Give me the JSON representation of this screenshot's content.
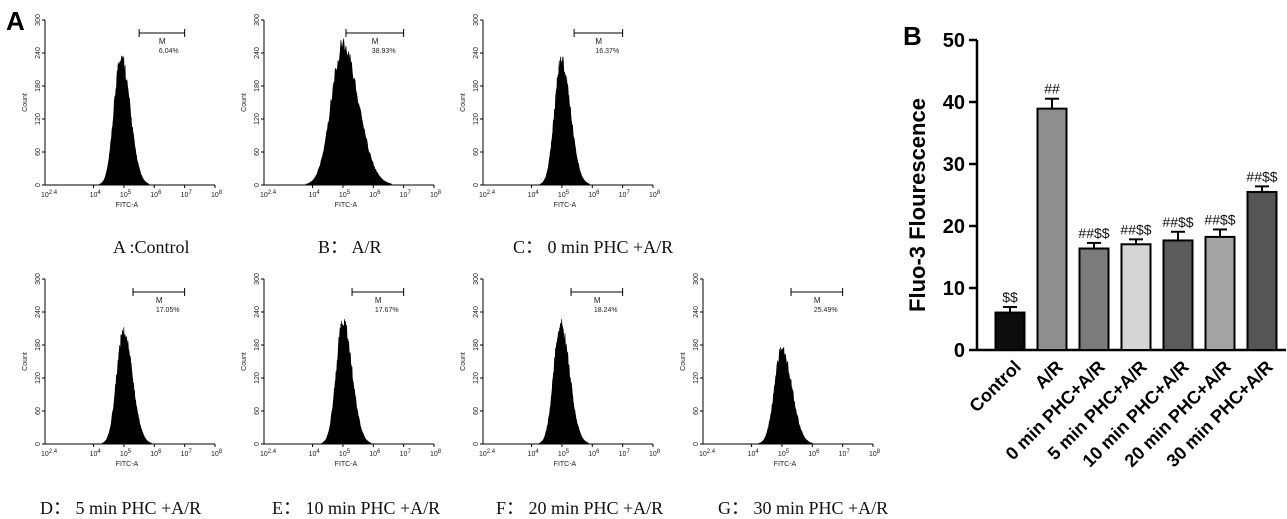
{
  "panels": {
    "a_label": "A",
    "b_label": "B"
  },
  "histograms": {
    "y_label": "Count",
    "x_label": "FITC-A",
    "gate_label": "M",
    "y_ticks": [
      "0",
      "60",
      "120",
      "180",
      "240",
      "300"
    ],
    "x_tick_first": "10",
    "x_tick_first_exp": "2.4",
    "x_ticks_exp": [
      "4",
      "5",
      "6",
      "7",
      "8"
    ],
    "items": [
      {
        "caption": "A :Control",
        "percent": "6.04%",
        "peak_count": 248,
        "peak_log": 4.9,
        "width": 0.22,
        "gate_from_log": 5.5,
        "gate_to_log": 7.0
      },
      {
        "caption": "B： A/R",
        "percent": "38.93%",
        "peak_count": 268,
        "peak_log": 5.0,
        "width": 0.38,
        "gate_from_log": 5.1,
        "gate_to_log": 7.0
      },
      {
        "caption": "C： 0 min PHC +A/R",
        "percent": "16.37%",
        "peak_count": 238,
        "peak_log": 4.98,
        "width": 0.22,
        "gate_from_log": 5.4,
        "gate_to_log": 7.0
      },
      {
        "caption": "D： 5 min PHC +A/R",
        "percent": "17.05%",
        "peak_count": 215,
        "peak_log": 4.98,
        "width": 0.22,
        "gate_from_log": 5.3,
        "gate_to_log": 7.0
      },
      {
        "caption": "E： 10 min PHC +A/R",
        "percent": "17.67%",
        "peak_count": 236,
        "peak_log": 5.0,
        "width": 0.22,
        "gate_from_log": 5.3,
        "gate_to_log": 7.0
      },
      {
        "caption": "F： 20 min PHC +A/R",
        "percent": "18.24%",
        "peak_count": 230,
        "peak_log": 4.95,
        "width": 0.22,
        "gate_from_log": 5.3,
        "gate_to_log": 7.0
      },
      {
        "caption": "G： 30 min PHC +A/R",
        "percent": "25.49%",
        "peak_count": 182,
        "peak_log": 5.0,
        "width": 0.24,
        "gate_from_log": 5.3,
        "gate_to_log": 7.0
      }
    ]
  },
  "chart_data": {
    "type": "bar",
    "ylabel": "Fluo-3 Flourescence",
    "ylim": [
      0,
      50
    ],
    "yticks": [
      0,
      10,
      20,
      30,
      40,
      50
    ],
    "categories": [
      "Control",
      "A/R",
      "0 min PHC+A/R",
      "5 min PHC+A/R",
      "10 min PHC+A/R",
      "20 min PHC+A/R",
      "30 min PHC+A/R"
    ],
    "values": [
      6.04,
      38.93,
      16.37,
      17.05,
      17.67,
      18.24,
      25.49
    ],
    "errors": [
      0.9,
      1.6,
      0.9,
      0.8,
      1.4,
      1.2,
      0.9
    ],
    "labels": [
      "$$",
      "##",
      "##$$",
      "##$$",
      "##$$",
      "##$$",
      "##$$"
    ],
    "colors": [
      "#0d0d0d",
      "#8e8e8e",
      "#7b7b7b",
      "#d5d5d5",
      "#5b5b5b",
      "#a4a4a4",
      "#555555"
    ]
  }
}
